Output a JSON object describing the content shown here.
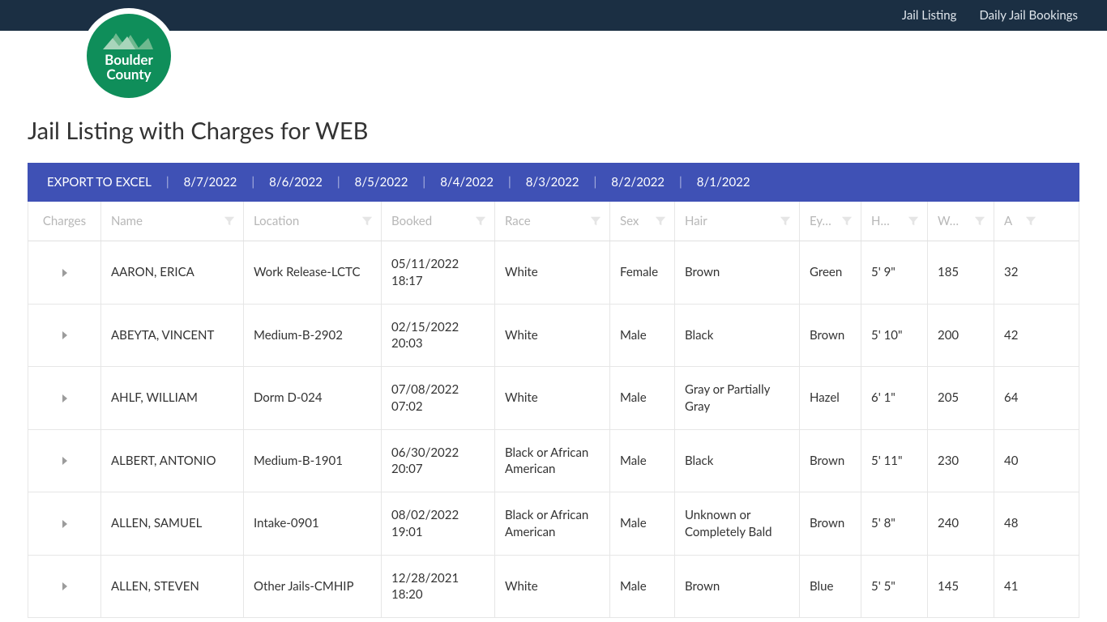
{
  "nav": {
    "links": [
      "Jail Listing",
      "Daily Jail Bookings"
    ]
  },
  "logo": {
    "line1": "Boulder",
    "line2": "County"
  },
  "page_title": "Jail Listing with Charges for WEB",
  "toolbar": {
    "export_label": "EXPORT TO EXCEL",
    "dates": [
      "8/7/2022",
      "8/6/2022",
      "8/5/2022",
      "8/4/2022",
      "8/3/2022",
      "8/2/2022",
      "8/1/2022"
    ]
  },
  "columns": [
    "Charges",
    "Name",
    "Location",
    "Booked",
    "Race",
    "Sex",
    "Hair",
    "Ey…",
    "H…",
    "W…",
    "A"
  ],
  "rows": [
    {
      "name": "AARON, ERICA",
      "location": "Work Release-LCTC",
      "booked": "05/11/2022 18:17",
      "race": "White",
      "sex": "Female",
      "hair": "Brown",
      "eyes": "Green",
      "height": "5' 9\"",
      "weight": "185",
      "age": "32"
    },
    {
      "name": "ABEYTA, VINCENT",
      "location": "Medium-B-2902",
      "booked": "02/15/2022 20:03",
      "race": "White",
      "sex": "Male",
      "hair": "Black",
      "eyes": "Brown",
      "height": "5' 10\"",
      "weight": "200",
      "age": "42"
    },
    {
      "name": "AHLF, WILLIAM",
      "location": "Dorm D-024",
      "booked": "07/08/2022 07:02",
      "race": "White",
      "sex": "Male",
      "hair": "Gray or Partially Gray",
      "eyes": "Hazel",
      "height": "6' 1\"",
      "weight": "205",
      "age": "64"
    },
    {
      "name": "ALBERT, ANTONIO",
      "location": "Medium-B-1901",
      "booked": "06/30/2022 20:07",
      "race": "Black or African American",
      "sex": "Male",
      "hair": "Black",
      "eyes": "Brown",
      "height": "5' 11\"",
      "weight": "230",
      "age": "40"
    },
    {
      "name": "ALLEN, SAMUEL",
      "location": "Intake-0901",
      "booked": "08/02/2022 19:01",
      "race": "Black or African American",
      "sex": "Male",
      "hair": "Unknown or Completely Bald",
      "eyes": "Brown",
      "height": "5' 8\"",
      "weight": "240",
      "age": "48"
    },
    {
      "name": "ALLEN, STEVEN",
      "location": "Other Jails-CMHIP",
      "booked": "12/28/2021 18:20",
      "race": "White",
      "sex": "Male",
      "hair": "Brown",
      "eyes": "Blue",
      "height": "5' 5\"",
      "weight": "145",
      "age": "41"
    }
  ]
}
